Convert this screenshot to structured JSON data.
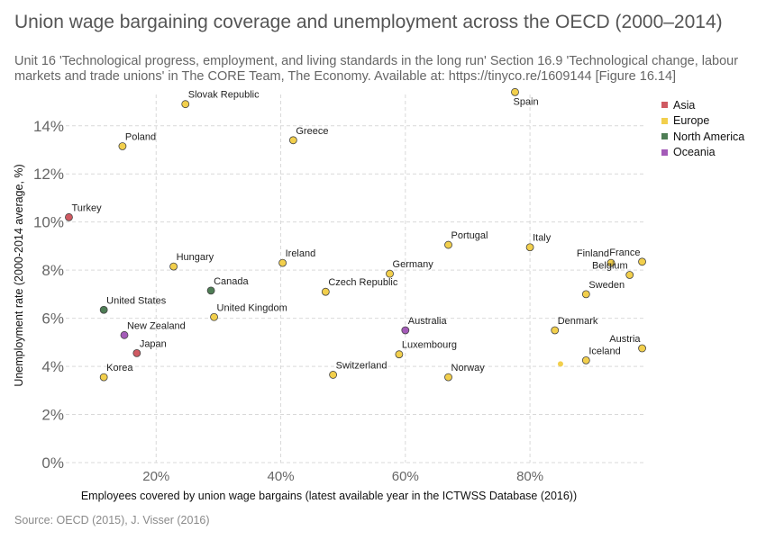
{
  "header": {
    "title": "Union wage bargaining coverage and unemployment across the OECD (2000–2014)",
    "subtitle": "Unit 16 'Technological progress, employment, and living standards in the long run' Section 16.9 'Technological change, labour markets and trade unions' in The CORE Team, The Economy. Available at: https://tinyco.re/1609144 [Figure 16.14]"
  },
  "source": "Source: OECD (2015), J. Visser (2016)",
  "colors": {
    "Asia": "#cf5a62",
    "Europe": "#f2cf4c",
    "North America": "#4e7d55",
    "Oceania": "#a45bb8",
    "grid": "#d9d9d9",
    "axis_text": "#666666"
  },
  "legend": {
    "placement": "right",
    "items": [
      "Asia",
      "Europe",
      "North America",
      "Oceania"
    ]
  },
  "chart_data": {
    "type": "scatter",
    "title": "Union wage bargaining coverage and unemployment across the OECD (2000–2014)",
    "xlabel": "Employees covered by union wage bargains (latest available year in the ICTWSS Database (2016))",
    "ylabel": "Unemployment rate (2000-2014 average, %)",
    "xlim": [
      5.5,
      98.5
    ],
    "ylim": [
      0,
      15.3
    ],
    "x_ticks": [
      20,
      40,
      60,
      80
    ],
    "x_tick_labels": [
      "20%",
      "40%",
      "60%",
      "80%"
    ],
    "y_ticks": [
      0,
      2,
      4,
      6,
      8,
      10,
      12,
      14
    ],
    "y_tick_labels": [
      "0%",
      "2%",
      "4%",
      "6%",
      "8%",
      "10%",
      "12%",
      "14%"
    ],
    "grid": true,
    "points": [
      {
        "label": "Turkey",
        "x": 6.0,
        "y": 10.2,
        "group": "Asia",
        "label_pos": "above-right"
      },
      {
        "label": "Japan",
        "x": 16.9,
        "y": 4.55,
        "group": "Asia",
        "label_pos": "above-right"
      },
      {
        "label": "Slovak Republic",
        "x": 24.7,
        "y": 14.9,
        "group": "Europe",
        "label_pos": "above-right"
      },
      {
        "label": "Poland",
        "x": 14.6,
        "y": 13.15,
        "group": "Europe",
        "label_pos": "above-right"
      },
      {
        "label": "Greece",
        "x": 42.0,
        "y": 13.4,
        "group": "Europe",
        "label_pos": "above-right"
      },
      {
        "label": "Spain",
        "x": 77.6,
        "y": 15.4,
        "group": "Europe",
        "label_pos": "below-right"
      },
      {
        "label": "Hungary",
        "x": 22.8,
        "y": 8.15,
        "group": "Europe",
        "label_pos": "above-right"
      },
      {
        "label": "Ireland",
        "x": 40.3,
        "y": 8.3,
        "group": "Europe",
        "label_pos": "above-right"
      },
      {
        "label": "Portugal",
        "x": 66.9,
        "y": 9.05,
        "group": "Europe",
        "label_pos": "above-right"
      },
      {
        "label": "Italy",
        "x": 80.0,
        "y": 8.95,
        "group": "Europe",
        "label_pos": "above-right"
      },
      {
        "label": "Finland",
        "x": 93.0,
        "y": 8.3,
        "group": "Europe",
        "label_pos": "above-left"
      },
      {
        "label": "France",
        "x": 98.0,
        "y": 8.35,
        "group": "Europe",
        "label_pos": "above-left"
      },
      {
        "label": "Belgium",
        "x": 96.0,
        "y": 7.8,
        "group": "Europe",
        "label_pos": "above-left"
      },
      {
        "label": "Germany",
        "x": 57.5,
        "y": 7.85,
        "group": "Europe",
        "label_pos": "above-right"
      },
      {
        "label": "Czech Republic",
        "x": 47.2,
        "y": 7.1,
        "group": "Europe",
        "label_pos": "above-right"
      },
      {
        "label": "Sweden",
        "x": 89.0,
        "y": 7.0,
        "group": "Europe",
        "label_pos": "above-right"
      },
      {
        "label": "United Kingdom",
        "x": 29.3,
        "y": 6.05,
        "group": "Europe",
        "label_pos": "above-right"
      },
      {
        "label": "Denmark",
        "x": 84.0,
        "y": 5.5,
        "group": "Europe",
        "label_pos": "above-right"
      },
      {
        "label": "Austria",
        "x": 98.0,
        "y": 4.75,
        "group": "Europe",
        "label_pos": "above-left"
      },
      {
        "label": "Iceland",
        "x": 89.0,
        "y": 4.25,
        "group": "Europe",
        "label_pos": "above-right"
      },
      {
        "label": "Luxembourg",
        "x": 59.0,
        "y": 4.5,
        "group": "Europe",
        "label_pos": "above-right"
      },
      {
        "label": "Switzerland",
        "x": 48.4,
        "y": 3.65,
        "group": "Europe",
        "label_pos": "above-right"
      },
      {
        "label": "Norway",
        "x": 66.9,
        "y": 3.55,
        "group": "Europe",
        "label_pos": "above-right"
      },
      {
        "label": "Korea",
        "x": 11.6,
        "y": 3.55,
        "group": "Europe",
        "label_pos": "above-right"
      },
      {
        "label": "",
        "x": 84.9,
        "y": 4.1,
        "group": "Europe",
        "label_pos": "none",
        "small": true
      },
      {
        "label": "United States",
        "x": 11.6,
        "y": 6.35,
        "group": "North America",
        "label_pos": "above-right"
      },
      {
        "label": "Canada",
        "x": 28.8,
        "y": 7.15,
        "group": "North America",
        "label_pos": "above-right"
      },
      {
        "label": "Australia",
        "x": 60.0,
        "y": 5.5,
        "group": "Oceania",
        "label_pos": "above-right"
      },
      {
        "label": "New Zealand",
        "x": 14.9,
        "y": 5.3,
        "group": "Oceania",
        "label_pos": "above-right"
      }
    ]
  }
}
